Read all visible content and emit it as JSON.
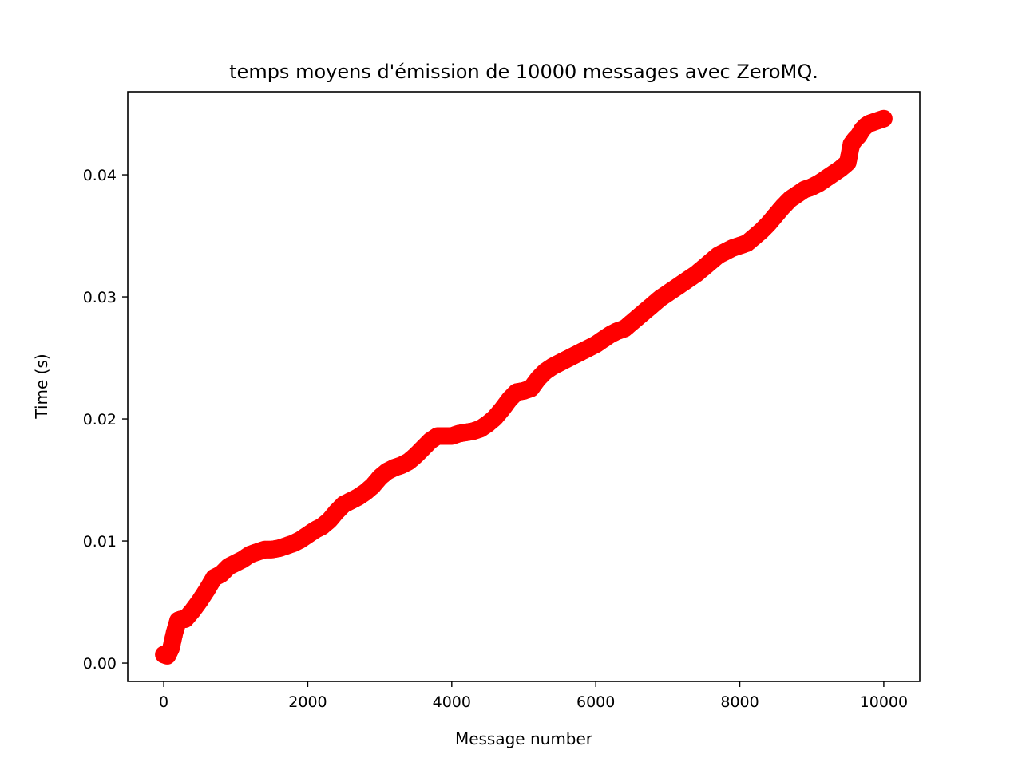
{
  "chart_data": {
    "type": "scatter",
    "title": "temps moyens d'émission de 10000 messages avec ZeroMQ.",
    "xlabel": "Message number",
    "ylabel": "Time (s)",
    "xlim": [
      -500,
      10500
    ],
    "ylim": [
      -0.0015,
      0.0468
    ],
    "xticks": [
      0,
      2000,
      4000,
      6000,
      8000,
      10000
    ],
    "xtick_labels": [
      "0",
      "2000",
      "4000",
      "6000",
      "8000",
      "10000"
    ],
    "yticks": [
      0.0,
      0.01,
      0.02,
      0.03,
      0.04
    ],
    "ytick_labels": [
      "0.00",
      "0.01",
      "0.02",
      "0.03",
      "0.04"
    ],
    "grid": false,
    "color": "#ff0000",
    "x": [
      0,
      50,
      100,
      150,
      200,
      250,
      300,
      400,
      500,
      600,
      700,
      800,
      900,
      1000,
      1100,
      1200,
      1300,
      1400,
      1500,
      1600,
      1700,
      1800,
      1900,
      2000,
      2100,
      2200,
      2300,
      2400,
      2500,
      2600,
      2700,
      2800,
      2900,
      3000,
      3100,
      3200,
      3300,
      3400,
      3500,
      3600,
      3700,
      3800,
      3900,
      4000,
      4100,
      4200,
      4300,
      4400,
      4500,
      4600,
      4700,
      4800,
      4900,
      5000,
      5100,
      5200,
      5300,
      5400,
      5500,
      5600,
      5700,
      5800,
      5900,
      6000,
      6100,
      6200,
      6300,
      6400,
      6500,
      6600,
      6700,
      6800,
      6900,
      7000,
      7100,
      7200,
      7300,
      7400,
      7500,
      7600,
      7700,
      7800,
      7900,
      8000,
      8100,
      8200,
      8300,
      8400,
      8500,
      8600,
      8700,
      8800,
      8900,
      9000,
      9100,
      9200,
      9300,
      9400,
      9500,
      9550,
      9600,
      9650,
      9700,
      9750,
      9800,
      9900,
      10000
    ],
    "y": [
      0.0007,
      0.0006,
      0.0012,
      0.0025,
      0.0035,
      0.0036,
      0.0036,
      0.0043,
      0.0051,
      0.006,
      0.007,
      0.0073,
      0.0079,
      0.0082,
      0.0085,
      0.0089,
      0.0091,
      0.0093,
      0.0093,
      0.0094,
      0.0096,
      0.0098,
      0.0101,
      0.0105,
      0.0109,
      0.0112,
      0.0117,
      0.0124,
      0.013,
      0.0133,
      0.0136,
      0.014,
      0.0145,
      0.0152,
      0.0157,
      0.016,
      0.0162,
      0.0165,
      0.017,
      0.0176,
      0.0182,
      0.0186,
      0.0186,
      0.0186,
      0.0188,
      0.0189,
      0.019,
      0.0192,
      0.0196,
      0.0201,
      0.0208,
      0.0216,
      0.0222,
      0.0223,
      0.0225,
      0.0233,
      0.0239,
      0.0243,
      0.0246,
      0.0249,
      0.0252,
      0.0255,
      0.0258,
      0.0261,
      0.0265,
      0.0269,
      0.0272,
      0.0274,
      0.0279,
      0.0284,
      0.0289,
      0.0294,
      0.0299,
      0.0303,
      0.0307,
      0.0311,
      0.0315,
      0.0319,
      0.0324,
      0.0329,
      0.0334,
      0.0337,
      0.034,
      0.0342,
      0.0344,
      0.0349,
      0.0354,
      0.036,
      0.0367,
      0.0374,
      0.038,
      0.0384,
      0.0388,
      0.039,
      0.0393,
      0.0397,
      0.0401,
      0.0405,
      0.041,
      0.0425,
      0.0429,
      0.0432,
      0.0437,
      0.044,
      0.0442,
      0.0444,
      0.0446
    ]
  }
}
